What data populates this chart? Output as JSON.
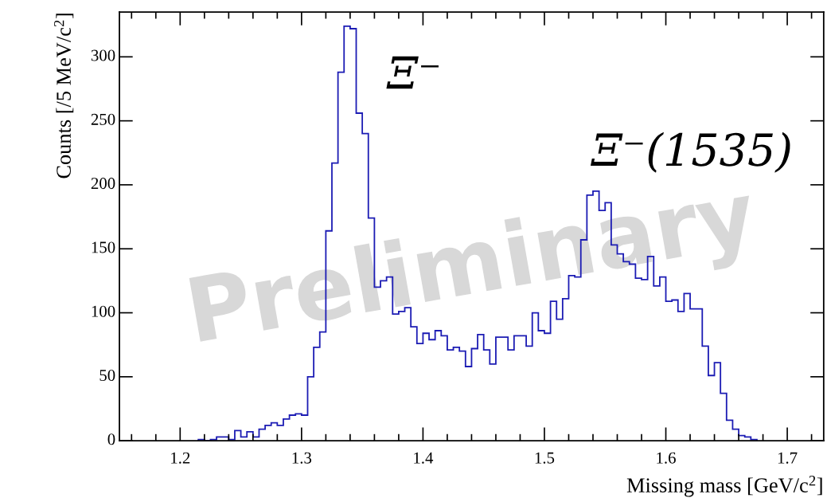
{
  "chart_data": {
    "type": "histogram",
    "xlabel": "Missing mass [GeV/c$^{2}$]",
    "ylabel": "Counts [/5 MeV/c$^{2}$]",
    "bins": [
      1.215,
      1.22,
      1.225,
      1.23,
      1.235,
      1.24,
      1.245,
      1.25,
      1.255,
      1.26,
      1.265,
      1.27,
      1.275,
      1.28,
      1.285,
      1.29,
      1.295,
      1.3,
      1.305,
      1.31,
      1.315,
      1.32,
      1.325,
      1.33,
      1.335,
      1.34,
      1.345,
      1.35,
      1.355,
      1.36,
      1.365,
      1.37,
      1.375,
      1.38,
      1.385,
      1.39,
      1.395,
      1.4,
      1.405,
      1.41,
      1.415,
      1.42,
      1.425,
      1.43,
      1.435,
      1.44,
      1.445,
      1.45,
      1.455,
      1.46,
      1.465,
      1.47,
      1.475,
      1.48,
      1.485,
      1.49,
      1.495,
      1.5,
      1.505,
      1.51,
      1.515,
      1.52,
      1.525,
      1.53,
      1.535,
      1.54,
      1.545,
      1.55,
      1.555,
      1.56,
      1.565,
      1.57,
      1.575,
      1.58,
      1.585,
      1.59,
      1.595,
      1.6,
      1.605,
      1.61,
      1.615,
      1.62,
      1.625,
      1.63,
      1.635,
      1.64,
      1.645,
      1.65,
      1.655,
      1.66,
      1.665,
      1.67,
      1.675
    ],
    "values": [
      1,
      0,
      1,
      3,
      3,
      1,
      8,
      3,
      7,
      3,
      9,
      12,
      14,
      12,
      17,
      20,
      21,
      20,
      50,
      73,
      85,
      164,
      217,
      288,
      324,
      322,
      256,
      240,
      174,
      120,
      125,
      128,
      99,
      101,
      104,
      89,
      76,
      84,
      79,
      86,
      82,
      71,
      73,
      70,
      58,
      72,
      83,
      71,
      60,
      81,
      81,
      71,
      82,
      82,
      74,
      100,
      86,
      84,
      109,
      95,
      111,
      129,
      128,
      157,
      192,
      195,
      180,
      186,
      153,
      146,
      140,
      138,
      127,
      126,
      144,
      121,
      128,
      109,
      110,
      101,
      115,
      103,
      103,
      74,
      51,
      61,
      37,
      16,
      9,
      4,
      3,
      1
    ],
    "color": "#1c1cb4",
    "xlim": [
      1.15,
      1.73
    ],
    "ylim": [
      0,
      335
    ],
    "xticks": [
      1.2,
      1.3,
      1.4,
      1.5,
      1.6,
      1.7
    ],
    "yticks": [
      0,
      50,
      100,
      150,
      200,
      250,
      300
    ],
    "grid": false,
    "annotations": [
      "Ξ⁻",
      "Ξ⁻(1535)",
      "Preliminary"
    ]
  }
}
